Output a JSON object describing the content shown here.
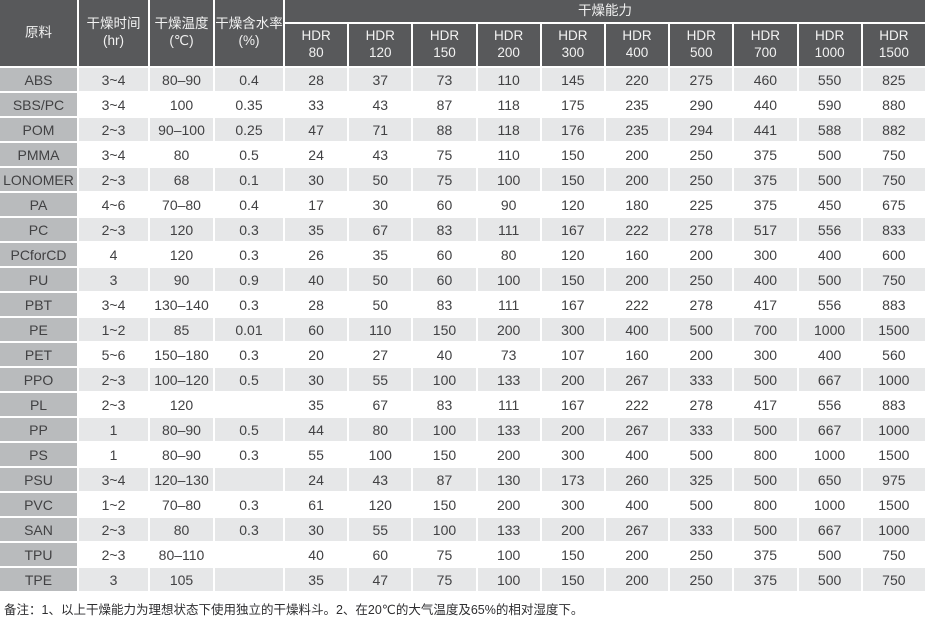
{
  "table": {
    "headers": {
      "material": "原料",
      "time_label": "干燥时间",
      "time_unit": "(hr)",
      "temp_label": "干燥温度",
      "temp_unit": "(℃)",
      "moisture_label": "干燥含水率",
      "moisture_unit": "(%)",
      "capacity": "干燥能力",
      "hdr_columns": [
        {
          "line1": "HDR",
          "line2": "80"
        },
        {
          "line1": "HDR",
          "line2": "120"
        },
        {
          "line1": "HDR",
          "line2": "150"
        },
        {
          "line1": "HDR",
          "line2": "200"
        },
        {
          "line1": "HDR",
          "line2": "300"
        },
        {
          "line1": "HDR",
          "line2": "400"
        },
        {
          "line1": "HDR",
          "line2": "500"
        },
        {
          "line1": "HDR",
          "line2": "700"
        },
        {
          "line1": "HDR",
          "line2": "1000"
        },
        {
          "line1": "HDR",
          "line2": "1500"
        }
      ]
    },
    "rows": [
      {
        "material": "ABS",
        "time": "3~4",
        "temp": "80–90",
        "moisture": "0.4",
        "capacities": [
          "28",
          "37",
          "73",
          "110",
          "145",
          "220",
          "275",
          "460",
          "550",
          "825"
        ]
      },
      {
        "material": "SBS/PC",
        "time": "3~4",
        "temp": "100",
        "moisture": "0.35",
        "capacities": [
          "33",
          "43",
          "87",
          "118",
          "175",
          "235",
          "290",
          "440",
          "590",
          "880"
        ]
      },
      {
        "material": "POM",
        "time": "2~3",
        "temp": "90–100",
        "moisture": "0.25",
        "capacities": [
          "47",
          "71",
          "88",
          "118",
          "176",
          "235",
          "294",
          "441",
          "588",
          "882"
        ]
      },
      {
        "material": "PMMA",
        "time": "3~4",
        "temp": "80",
        "moisture": "0.5",
        "capacities": [
          "24",
          "43",
          "75",
          "110",
          "150",
          "200",
          "250",
          "375",
          "500",
          "750"
        ]
      },
      {
        "material": "LONOMER",
        "time": "2~3",
        "temp": "68",
        "moisture": "0.1",
        "capacities": [
          "30",
          "50",
          "75",
          "100",
          "150",
          "200",
          "250",
          "375",
          "500",
          "750"
        ]
      },
      {
        "material": "PA",
        "time": "4~6",
        "temp": "70–80",
        "moisture": "0.4",
        "capacities": [
          "17",
          "30",
          "60",
          "90",
          "120",
          "180",
          "225",
          "375",
          "450",
          "675"
        ]
      },
      {
        "material": "PC",
        "time": "2~3",
        "temp": "120",
        "moisture": "0.3",
        "capacities": [
          "35",
          "67",
          "83",
          "111",
          "167",
          "222",
          "278",
          "517",
          "556",
          "833"
        ]
      },
      {
        "material": "PCforCD",
        "time": "4",
        "temp": "120",
        "moisture": "0.3",
        "capacities": [
          "26",
          "35",
          "60",
          "80",
          "120",
          "160",
          "200",
          "300",
          "400",
          "600"
        ]
      },
      {
        "material": "PU",
        "time": "3",
        "temp": "90",
        "moisture": "0.9",
        "capacities": [
          "40",
          "50",
          "60",
          "100",
          "150",
          "200",
          "250",
          "400",
          "500",
          "750"
        ]
      },
      {
        "material": "PBT",
        "time": "3~4",
        "temp": "130–140",
        "moisture": "0.3",
        "capacities": [
          "28",
          "50",
          "83",
          "111",
          "167",
          "222",
          "278",
          "417",
          "556",
          "883"
        ]
      },
      {
        "material": "PE",
        "time": "1~2",
        "temp": "85",
        "moisture": "0.01",
        "capacities": [
          "60",
          "110",
          "150",
          "200",
          "300",
          "400",
          "500",
          "700",
          "1000",
          "1500"
        ]
      },
      {
        "material": "PET",
        "time": "5~6",
        "temp": "150–180",
        "moisture": "0.3",
        "capacities": [
          "20",
          "27",
          "40",
          "73",
          "107",
          "160",
          "200",
          "300",
          "400",
          "560"
        ]
      },
      {
        "material": "PPO",
        "time": "2~3",
        "temp": "100–120",
        "moisture": "0.5",
        "capacities": [
          "30",
          "55",
          "100",
          "133",
          "200",
          "267",
          "333",
          "500",
          "667",
          "1000"
        ]
      },
      {
        "material": "PL",
        "time": "2~3",
        "temp": "120",
        "moisture": "",
        "capacities": [
          "35",
          "67",
          "83",
          "111",
          "167",
          "222",
          "278",
          "417",
          "556",
          "883"
        ]
      },
      {
        "material": "PP",
        "time": "1",
        "temp": "80–90",
        "moisture": "0.5",
        "capacities": [
          "44",
          "80",
          "100",
          "133",
          "200",
          "267",
          "333",
          "500",
          "667",
          "1000"
        ]
      },
      {
        "material": "PS",
        "time": "1",
        "temp": "80–90",
        "moisture": "0.3",
        "capacities": [
          "55",
          "100",
          "150",
          "200",
          "300",
          "400",
          "500",
          "800",
          "1000",
          "1500"
        ]
      },
      {
        "material": "PSU",
        "time": "3~4",
        "temp": "120–130",
        "moisture": "",
        "capacities": [
          "24",
          "43",
          "87",
          "130",
          "173",
          "260",
          "325",
          "500",
          "650",
          "975"
        ]
      },
      {
        "material": "PVC",
        "time": "1~2",
        "temp": "70–80",
        "moisture": "0.3",
        "capacities": [
          "61",
          "120",
          "150",
          "200",
          "300",
          "400",
          "500",
          "800",
          "1000",
          "1500"
        ]
      },
      {
        "material": "SAN",
        "time": "2~3",
        "temp": "80",
        "moisture": "0.3",
        "capacities": [
          "30",
          "55",
          "100",
          "133",
          "200",
          "267",
          "333",
          "500",
          "667",
          "1000"
        ]
      },
      {
        "material": "TPU",
        "time": "2~3",
        "temp": "80–110",
        "moisture": "",
        "capacities": [
          "40",
          "60",
          "75",
          "100",
          "150",
          "200",
          "250",
          "375",
          "500",
          "750"
        ]
      },
      {
        "material": "TPE",
        "time": "3",
        "temp": "105",
        "moisture": "",
        "capacities": [
          "35",
          "47",
          "75",
          "100",
          "150",
          "200",
          "250",
          "375",
          "500",
          "750"
        ]
      }
    ]
  },
  "footnote": "备注：1、以上干燥能力为理想状态下使用独立的干燥料斗。2、在20℃的大气温度及65%的相对湿度下。",
  "colors": {
    "header_bg": "#58595b",
    "header_text": "#f2f2f2",
    "material_col_bg": "#b9bbbd",
    "row_alt_bg": "#e6e7e8",
    "row_bg": "#ffffff",
    "text": "#414143"
  }
}
